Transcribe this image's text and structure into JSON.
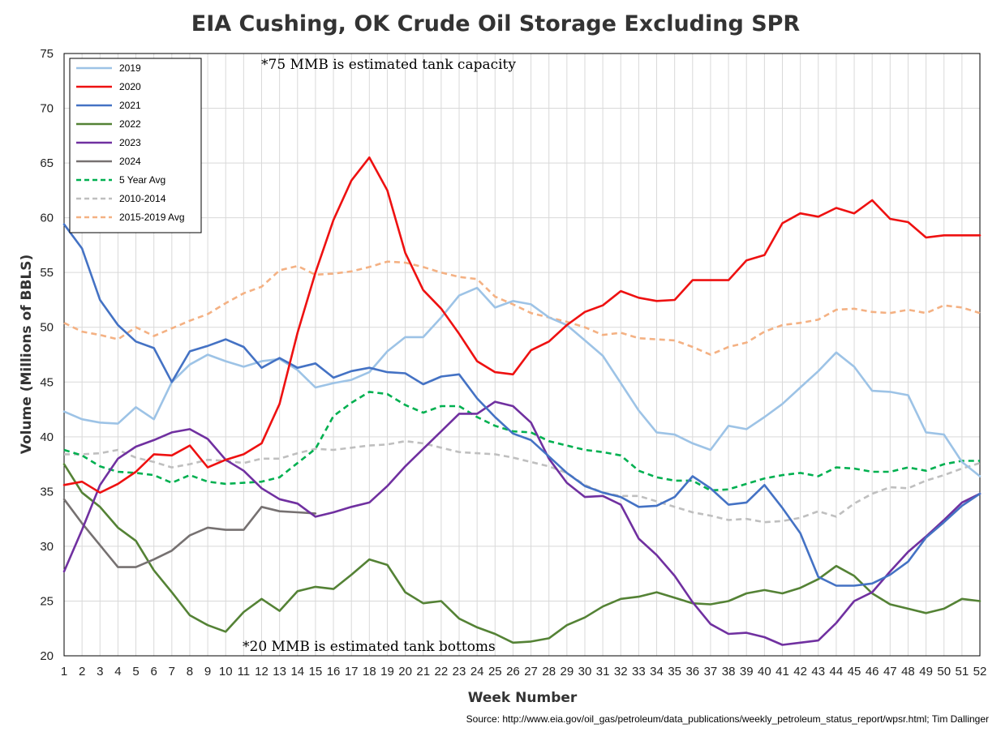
{
  "chart_data": {
    "type": "line",
    "title": "EIA Cushing, OK Crude Oil Storage Excluding SPR",
    "xlabel": "Week Number",
    "ylabel": "Volume (Millions of BBLS)",
    "ylim": [
      20,
      75
    ],
    "xlim": [
      1,
      52
    ],
    "grid": true,
    "legend_position": "top-left",
    "x": [
      1,
      2,
      3,
      4,
      5,
      6,
      7,
      8,
      9,
      10,
      11,
      12,
      13,
      14,
      15,
      16,
      17,
      18,
      19,
      20,
      21,
      22,
      23,
      24,
      25,
      26,
      27,
      28,
      29,
      30,
      31,
      32,
      33,
      34,
      35,
      36,
      37,
      38,
      39,
      40,
      41,
      42,
      43,
      44,
      45,
      46,
      47,
      48,
      49,
      50,
      51,
      52
    ],
    "series": [
      {
        "name": "2019",
        "color": "#9dc3e6",
        "dash": "solid",
        "values": [
          42.3,
          41.6,
          41.3,
          41.2,
          42.7,
          41.6,
          45.0,
          46.6,
          47.5,
          46.9,
          46.4,
          46.9,
          47.1,
          46.1,
          44.5,
          44.9,
          45.2,
          45.9,
          47.8,
          49.1,
          49.1,
          50.9,
          52.9,
          53.6,
          51.8,
          52.4,
          52.1,
          50.9,
          50.2,
          48.8,
          47.4,
          44.9,
          42.4,
          40.4,
          40.2,
          39.4,
          38.8,
          41.0,
          40.7,
          41.8,
          43.0,
          44.5,
          46.0,
          47.7,
          46.4,
          44.2,
          44.1,
          43.8,
          40.4,
          40.2,
          37.7,
          36.4
        ]
      },
      {
        "name": "2020",
        "color": "#ee1111",
        "dash": "solid",
        "values": [
          35.6,
          35.9,
          34.9,
          35.7,
          36.8,
          38.4,
          38.3,
          39.2,
          37.2,
          37.9,
          38.4,
          39.4,
          43.0,
          49.5,
          55.0,
          59.8,
          63.4,
          65.5,
          62.5,
          56.8,
          53.4,
          51.7,
          49.4,
          46.9,
          45.9,
          45.7,
          47.9,
          48.7,
          50.2,
          51.4,
          52.0,
          53.3,
          52.7,
          52.4,
          52.5,
          54.3,
          54.3,
          54.3,
          56.1,
          56.6,
          59.5,
          60.4,
          60.1,
          60.9,
          60.4,
          61.6,
          59.9,
          59.6,
          58.2,
          58.4,
          58.4,
          58.4
        ]
      },
      {
        "name": "2021",
        "color": "#4472c4",
        "dash": "solid",
        "values": [
          59.4,
          57.2,
          52.5,
          50.2,
          48.7,
          48.1,
          45.0,
          47.8,
          48.3,
          48.9,
          48.2,
          46.3,
          47.2,
          46.3,
          46.7,
          45.4,
          46.0,
          46.3,
          45.9,
          45.8,
          44.8,
          45.5,
          45.7,
          43.5,
          41.8,
          40.3,
          39.7,
          38.2,
          36.7,
          35.5,
          34.9,
          34.5,
          33.6,
          33.7,
          34.5,
          36.4,
          35.3,
          33.8,
          34.0,
          35.6,
          33.5,
          31.2,
          27.2,
          26.4,
          26.4,
          26.6,
          27.4,
          28.6,
          30.8,
          32.2,
          33.7,
          34.8
        ]
      },
      {
        "name": "2022",
        "color": "#548235",
        "dash": "solid",
        "values": [
          37.5,
          34.9,
          33.6,
          31.7,
          30.5,
          27.8,
          25.8,
          23.7,
          22.8,
          22.2,
          24.0,
          25.2,
          24.1,
          25.9,
          26.3,
          26.1,
          27.4,
          28.8,
          28.3,
          25.8,
          24.8,
          25.0,
          23.4,
          22.6,
          22.0,
          21.2,
          21.3,
          21.6,
          22.8,
          23.5,
          24.5,
          25.2,
          25.4,
          25.8,
          25.3,
          24.8,
          24.7,
          25.0,
          25.7,
          26.0,
          25.7,
          26.2,
          27.0,
          28.2,
          27.3,
          25.7,
          24.7,
          24.3,
          23.9,
          24.3,
          25.2,
          25.0
        ]
      },
      {
        "name": "2023",
        "color": "#7030a0",
        "dash": "solid",
        "values": [
          27.7,
          31.5,
          35.6,
          38.0,
          39.1,
          39.7,
          40.4,
          40.7,
          39.8,
          37.9,
          36.9,
          35.3,
          34.3,
          33.9,
          32.7,
          33.1,
          33.6,
          34.0,
          35.5,
          37.3,
          38.9,
          40.5,
          42.1,
          42.1,
          43.2,
          42.8,
          41.3,
          38.0,
          35.8,
          34.5,
          34.6,
          33.8,
          30.7,
          29.2,
          27.3,
          24.9,
          22.9,
          22.0,
          22.1,
          21.7,
          21.0,
          21.2,
          21.4,
          23.0,
          25.0,
          25.8,
          27.7,
          29.5,
          30.9,
          32.4,
          34.0,
          34.8
        ]
      },
      {
        "name": "2024",
        "color": "#767171",
        "dash": "solid",
        "values": [
          34.3,
          32.1,
          30.1,
          28.1,
          28.1,
          28.8,
          29.6,
          31.0,
          31.7,
          31.5,
          31.5,
          33.6,
          33.2,
          33.1,
          33.0,
          null,
          null,
          null,
          null,
          null,
          null,
          null,
          null,
          null,
          null,
          null,
          null,
          null,
          null,
          null,
          null,
          null,
          null,
          null,
          null,
          null,
          null,
          null,
          null,
          null,
          null,
          null,
          null,
          null,
          null,
          null,
          null,
          null,
          null,
          null,
          null,
          null
        ]
      },
      {
        "name": "5 Year Avg",
        "color": "#00b050",
        "dash": "dashed",
        "values": [
          38.8,
          38.3,
          37.3,
          36.8,
          36.7,
          36.5,
          35.8,
          36.5,
          35.9,
          35.7,
          35.8,
          35.9,
          36.3,
          37.6,
          38.9,
          41.9,
          43.1,
          44.1,
          43.9,
          42.9,
          42.2,
          42.8,
          42.8,
          41.8,
          41.0,
          40.5,
          40.4,
          39.6,
          39.2,
          38.8,
          38.6,
          38.3,
          36.9,
          36.3,
          36.0,
          36.0,
          35.1,
          35.2,
          35.7,
          36.2,
          36.5,
          36.7,
          36.4,
          37.2,
          37.1,
          36.8,
          36.8,
          37.2,
          36.9,
          37.5,
          37.8,
          37.8
        ]
      },
      {
        "name": "2010-2014",
        "color": "#bfbfbf",
        "dash": "dashed",
        "values": [
          38.4,
          38.4,
          38.5,
          38.8,
          38.1,
          37.7,
          37.2,
          37.5,
          37.9,
          37.8,
          37.6,
          38.0,
          38.0,
          38.5,
          38.9,
          38.8,
          39.0,
          39.2,
          39.3,
          39.6,
          39.4,
          39.0,
          38.6,
          38.5,
          38.4,
          38.1,
          37.7,
          37.3,
          36.7,
          35.6,
          34.9,
          34.6,
          34.6,
          34.1,
          33.6,
          33.1,
          32.8,
          32.4,
          32.5,
          32.2,
          32.3,
          32.6,
          33.2,
          32.7,
          33.9,
          34.8,
          35.4,
          35.3,
          36.0,
          36.5,
          37.1,
          37.6
        ]
      },
      {
        "name": "2015-2019 Avg",
        "color": "#f4b183",
        "dash": "dashed",
        "values": [
          50.4,
          49.6,
          49.3,
          48.9,
          50.0,
          49.2,
          49.9,
          50.6,
          51.2,
          52.2,
          53.1,
          53.7,
          55.2,
          55.6,
          54.8,
          54.9,
          55.1,
          55.5,
          56.0,
          55.9,
          55.5,
          55.0,
          54.6,
          54.4,
          52.8,
          52.1,
          51.3,
          50.9,
          50.5,
          50.0,
          49.3,
          49.5,
          49.0,
          48.9,
          48.8,
          48.2,
          47.5,
          48.2,
          48.6,
          49.6,
          50.2,
          50.4,
          50.7,
          51.6,
          51.7,
          51.4,
          51.3,
          51.6,
          51.3,
          52.0,
          51.8,
          51.3
        ]
      }
    ],
    "yticks": [
      "75",
      "70",
      "65",
      "60",
      "55",
      "50",
      "45",
      "40",
      "35",
      "30",
      "25",
      "20"
    ],
    "xticks": [
      "1",
      "2",
      "3",
      "4",
      "5",
      "6",
      "7",
      "8",
      "9",
      "10",
      "11",
      "12",
      "13",
      "14",
      "15",
      "16",
      "17",
      "18",
      "19",
      "20",
      "21",
      "22",
      "23",
      "24",
      "25",
      "26",
      "27",
      "28",
      "29",
      "30",
      "31",
      "32",
      "33",
      "34",
      "35",
      "36",
      "37",
      "38",
      "39",
      "40",
      "41",
      "42",
      "43",
      "44",
      "45",
      "46",
      "47",
      "48",
      "49",
      "50",
      "51",
      "52"
    ],
    "annotations": {
      "capacity": "*75 MMB is estimated tank capacity",
      "bottoms": "*20 MMB is estimated tank bottoms"
    },
    "source": "Source: http://www.eia.gov/oil_gas/petroleum/data_publications/weekly_petroleum_status_report/wpsr.html; Tim Dallinger"
  }
}
